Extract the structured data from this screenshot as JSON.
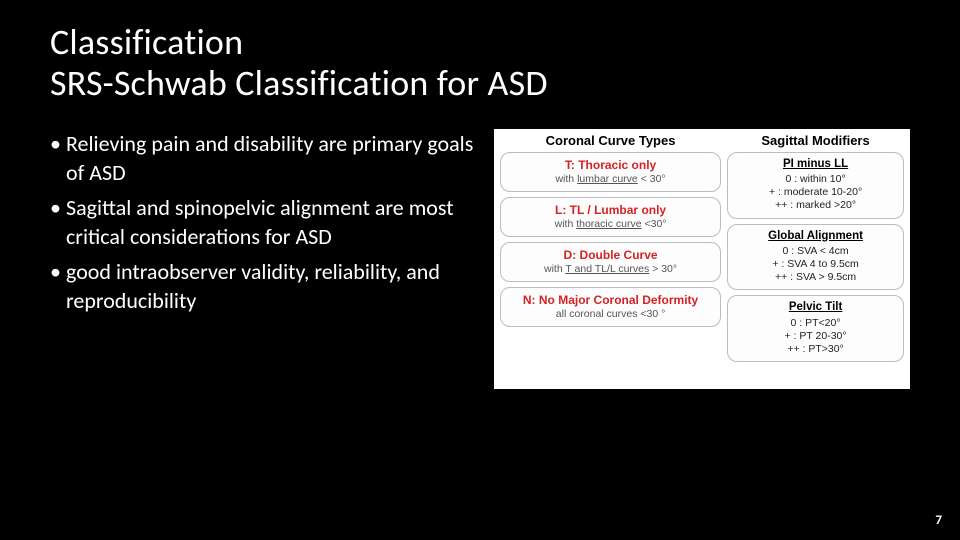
{
  "title_line1": "Classification",
  "title_line2": "SRS-Schwab Classification for ASD",
  "bullets": [
    "Relieving pain and disability are primary goals of ASD",
    "Sagittal and spinopelvic alignment are most critical considerations for ASD",
    "good intraobserver validity, reliability, and reproducibility"
  ],
  "figure": {
    "left_header": "Coronal Curve Types",
    "right_header": "Sagittal Modifiers",
    "curves": [
      {
        "letter": "T:",
        "label": "Thoracic only",
        "sub_pre": "with ",
        "sub_under": "lumbar curve",
        "sub_post": " < 30°"
      },
      {
        "letter": "L:",
        "label": "TL / Lumbar only",
        "sub_pre": "with ",
        "sub_under": "thoracic curve",
        "sub_post": " <30°"
      },
      {
        "letter": "D:",
        "label": "Double Curve",
        "sub_pre": "with ",
        "sub_under": "T and TL/L curves",
        "sub_post": " > 30°"
      },
      {
        "letter": "N:",
        "label": "No Major Coronal Deformity",
        "sub_pre": "",
        "sub_under": "",
        "sub_post": "all coronal curves <30 °"
      }
    ],
    "modifiers": [
      {
        "head": "PI minus LL",
        "lines": [
          "0 : within 10°",
          "+ : moderate 10-20°",
          "++ : marked >20°"
        ]
      },
      {
        "head": "Global Alignment",
        "lines": [
          "0 : SVA < 4cm",
          "+ : SVA 4 to 9.5cm",
          "++ : SVA > 9.5cm"
        ]
      },
      {
        "head": "Pelvic Tilt",
        "lines": [
          "0 : PT<20°",
          "+ : PT 20-30°",
          "++ : PT>30°"
        ]
      }
    ]
  },
  "page_number": "7"
}
